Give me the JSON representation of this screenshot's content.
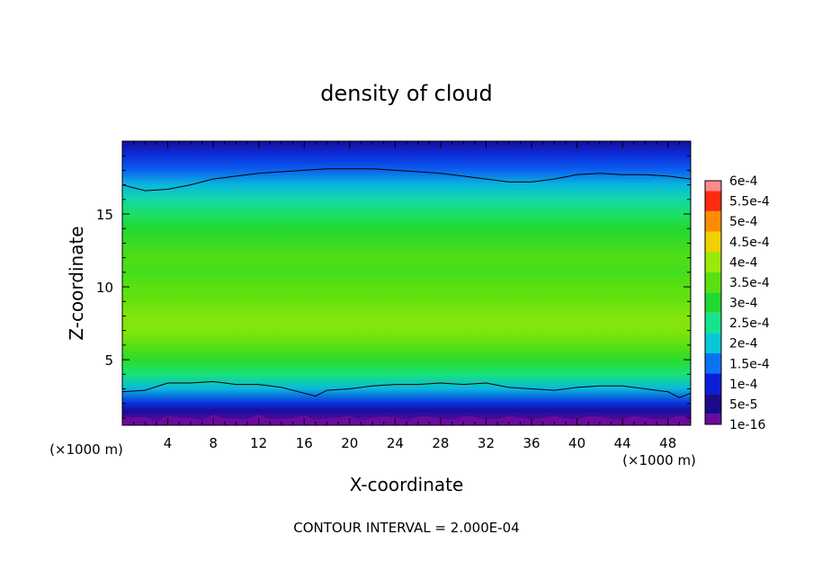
{
  "chart_data": {
    "type": "heatmap",
    "title": "density of cloud",
    "xlabel": "X-coordinate",
    "ylabel": "Z-coordinate",
    "x_unit": "(×1000 m)",
    "y_unit": "(×1000 m)",
    "xlim": [
      0,
      50
    ],
    "ylim": [
      0.5,
      20
    ],
    "x_ticks": [
      4,
      8,
      12,
      16,
      20,
      24,
      28,
      32,
      36,
      40,
      44,
      48
    ],
    "y_ticks": [
      5,
      10,
      15
    ],
    "contour_interval_text": "CONTOUR INTERVAL = 2.000E-04",
    "colorbar": {
      "labels": [
        "1e-16",
        "5e-5",
        "1e-4",
        "1.5e-4",
        "2e-4",
        "2.5e-4",
        "3e-4",
        "3.5e-4",
        "4e-4",
        "4.5e-4",
        "5e-4",
        "5.5e-4",
        "6e-4"
      ],
      "colors": [
        "#6a0a9e",
        "#1a0a8c",
        "#0a1ed8",
        "#0c72f4",
        "#08c8d8",
        "#16e48a",
        "#22d830",
        "#5ae010",
        "#9ce808",
        "#f0d000",
        "#ff8c00",
        "#ff2a10",
        "#ff8a8a"
      ]
    },
    "profile_z": [
      0.5,
      1.0,
      1.5,
      2.0,
      3.0,
      4.0,
      5.0,
      6.0,
      7.0,
      8.0,
      9.0,
      10.0,
      11.0,
      12.0,
      13.0,
      14.0,
      15.0,
      16.0,
      17.0,
      18.0,
      19.0,
      20.0
    ],
    "profile_value": [
      0.0,
      2e-05,
      6e-05,
      0.00011,
      0.00019,
      0.00026,
      0.00031,
      0.00035,
      0.00038,
      0.00038,
      0.00036,
      0.00035,
      0.00033,
      0.00034,
      0.00032,
      0.0003,
      0.00027,
      0.00023,
      0.00019,
      0.00014,
      0.00011,
      6e-05
    ],
    "contour_lower": {
      "x": [
        0,
        2,
        4,
        6,
        8,
        10,
        12,
        14,
        16,
        17,
        18,
        20,
        22,
        24,
        26,
        28,
        30,
        32,
        34,
        36,
        38,
        40,
        42,
        44,
        46,
        48,
        49,
        50
      ],
      "z": [
        2.8,
        2.9,
        3.4,
        3.4,
        3.5,
        3.3,
        3.3,
        3.1,
        2.7,
        2.5,
        2.9,
        3.0,
        3.2,
        3.3,
        3.3,
        3.4,
        3.3,
        3.4,
        3.1,
        3.0,
        2.9,
        3.1,
        3.2,
        3.2,
        3.0,
        2.8,
        2.4,
        2.7
      ]
    },
    "contour_upper": {
      "x": [
        0,
        2,
        4,
        6,
        8,
        10,
        12,
        14,
        16,
        18,
        20,
        22,
        24,
        26,
        28,
        30,
        32,
        34,
        36,
        38,
        40,
        42,
        44,
        46,
        48,
        50
      ],
      "z": [
        17.0,
        16.6,
        16.7,
        17.0,
        17.4,
        17.6,
        17.8,
        17.9,
        18.0,
        18.1,
        18.1,
        18.1,
        18.0,
        17.9,
        17.8,
        17.6,
        17.4,
        17.2,
        17.2,
        17.4,
        17.7,
        17.8,
        17.7,
        17.7,
        17.6,
        17.4
      ]
    }
  }
}
